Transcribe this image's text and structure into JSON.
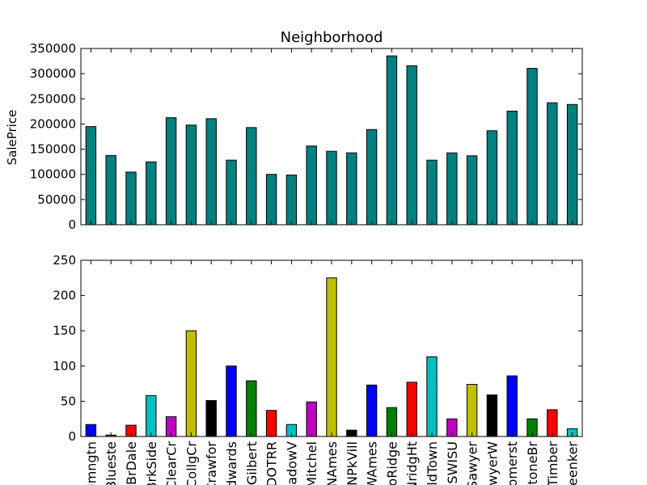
{
  "chart_data": [
    {
      "type": "bar",
      "title": "Neighborhood",
      "xlabel": "",
      "ylabel": "SalePrice",
      "ylim": [
        0,
        350000
      ],
      "yticks": [
        0,
        50000,
        100000,
        150000,
        200000,
        250000,
        300000,
        350000
      ],
      "grid": false,
      "bar_color": "#008080",
      "show_x_tick_labels": false,
      "categories": [
        "Blmngtn",
        "Blueste",
        "BrDale",
        "BrkSide",
        "ClearCr",
        "CollgCr",
        "Crawfor",
        "Edwards",
        "Gilbert",
        "IDOTRR",
        "MeadowV",
        "Mitchel",
        "NAmes",
        "NPkVill",
        "NWAmes",
        "NoRidge",
        "NridgHt",
        "OldTown",
        "SWISU",
        "Sawyer",
        "SawyerW",
        "Somerst",
        "StoneBr",
        "Timber",
        "Veenker"
      ],
      "values": [
        194900,
        137500,
        104500,
        124800,
        212500,
        197900,
        210600,
        128200,
        192900,
        100000,
        98600,
        156300,
        145800,
        142700,
        189000,
        335300,
        315800,
        128200,
        142600,
        136800,
        186600,
        225500,
        310500,
        242200,
        238800
      ]
    },
    {
      "type": "bar",
      "title": "",
      "xlabel": "",
      "ylabel": "",
      "ylim": [
        0,
        250
      ],
      "yticks": [
        0,
        50,
        100,
        150,
        200,
        250
      ],
      "grid": false,
      "bar_colors": [
        "#0000ff",
        "#008000",
        "#ff0000",
        "#00bfbf",
        "#bf00bf",
        "#bfbf00",
        "#000000"
      ],
      "categories": [
        "Blmngtn",
        "Blueste",
        "BrDale",
        "BrkSide",
        "ClearCr",
        "CollgCr",
        "Crawfor",
        "Edwards",
        "Gilbert",
        "IDOTRR",
        "MeadowV",
        "Mitchel",
        "NAmes",
        "NPkVill",
        "NWAmes",
        "NoRidge",
        "NridgHt",
        "OldTown",
        "SWISU",
        "Sawyer",
        "SawyerW",
        "Somerst",
        "StoneBr",
        "Timber",
        "Veenker"
      ],
      "values": [
        17,
        2,
        16,
        58,
        28,
        150,
        51,
        100,
        79,
        37,
        17,
        49,
        225,
        9,
        73,
        41,
        77,
        113,
        25,
        74,
        59,
        86,
        25,
        38,
        11
      ]
    }
  ]
}
